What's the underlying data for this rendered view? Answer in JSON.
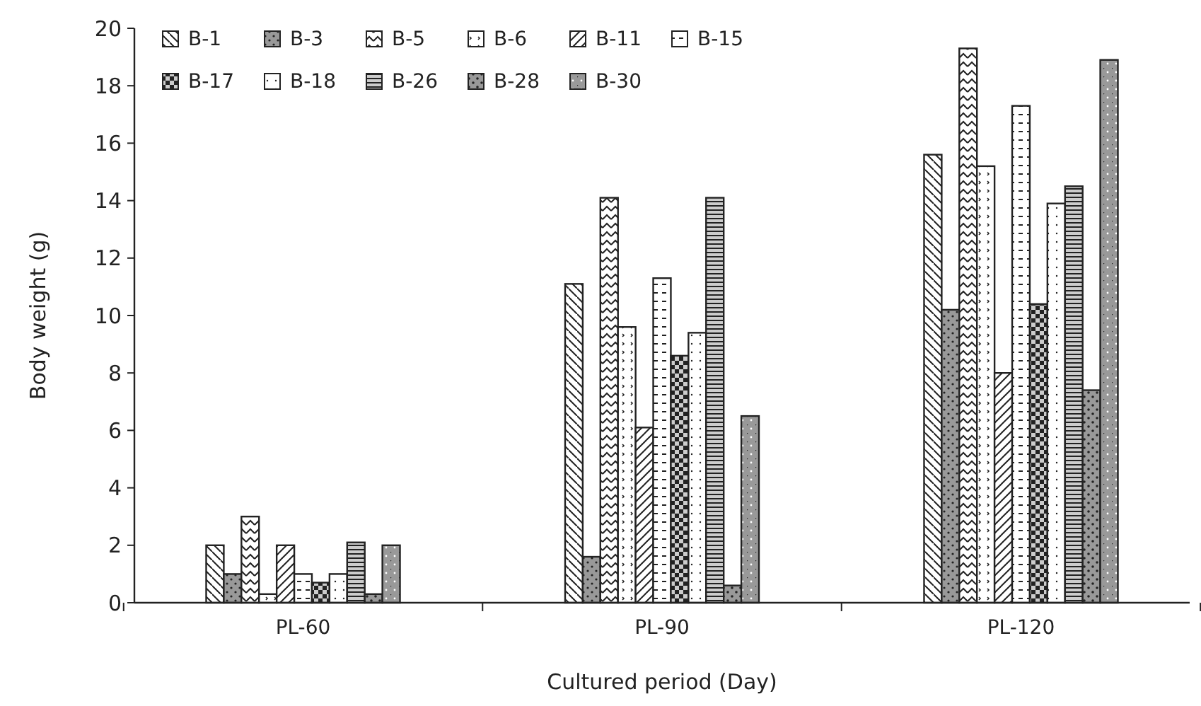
{
  "chart_data": {
    "type": "bar",
    "xlabel": "Cultured period (Day)",
    "ylabel": "Body weight (g)",
    "categories": [
      "PL-60",
      "PL-90",
      "PL-120"
    ],
    "ylim": [
      0,
      20
    ],
    "yticks": [
      0,
      2,
      4,
      6,
      8,
      10,
      12,
      14,
      16,
      18,
      20
    ],
    "grid": false,
    "legend": "top left",
    "series": [
      {
        "name": "B-1",
        "color": "#222222",
        "values": [
          2.0,
          11.1,
          15.6
        ]
      },
      {
        "name": "B-3",
        "color": "#222222",
        "values": [
          1.0,
          1.6,
          10.2
        ]
      },
      {
        "name": "B-5",
        "color": "#222222",
        "values": [
          3.0,
          14.1,
          19.3
        ]
      },
      {
        "name": "B-6",
        "color": "#222222",
        "values": [
          0.3,
          9.6,
          15.2
        ]
      },
      {
        "name": "B-11",
        "color": "#222222",
        "values": [
          2.0,
          6.1,
          8.0
        ]
      },
      {
        "name": "B-15",
        "color": "#222222",
        "values": [
          1.0,
          11.3,
          17.3
        ]
      },
      {
        "name": "B-17",
        "color": "#222222",
        "values": [
          0.7,
          8.6,
          10.4
        ]
      },
      {
        "name": "B-18",
        "color": "#222222",
        "values": [
          1.0,
          9.4,
          13.9
        ]
      },
      {
        "name": "B-26",
        "color": "#222222",
        "values": [
          2.1,
          14.1,
          14.5
        ]
      },
      {
        "name": "B-28",
        "color": "#222222",
        "values": [
          0.3,
          0.6,
          7.4
        ]
      },
      {
        "name": "B-30",
        "color": "#222222",
        "values": [
          2.0,
          6.5,
          18.9
        ]
      }
    ]
  }
}
